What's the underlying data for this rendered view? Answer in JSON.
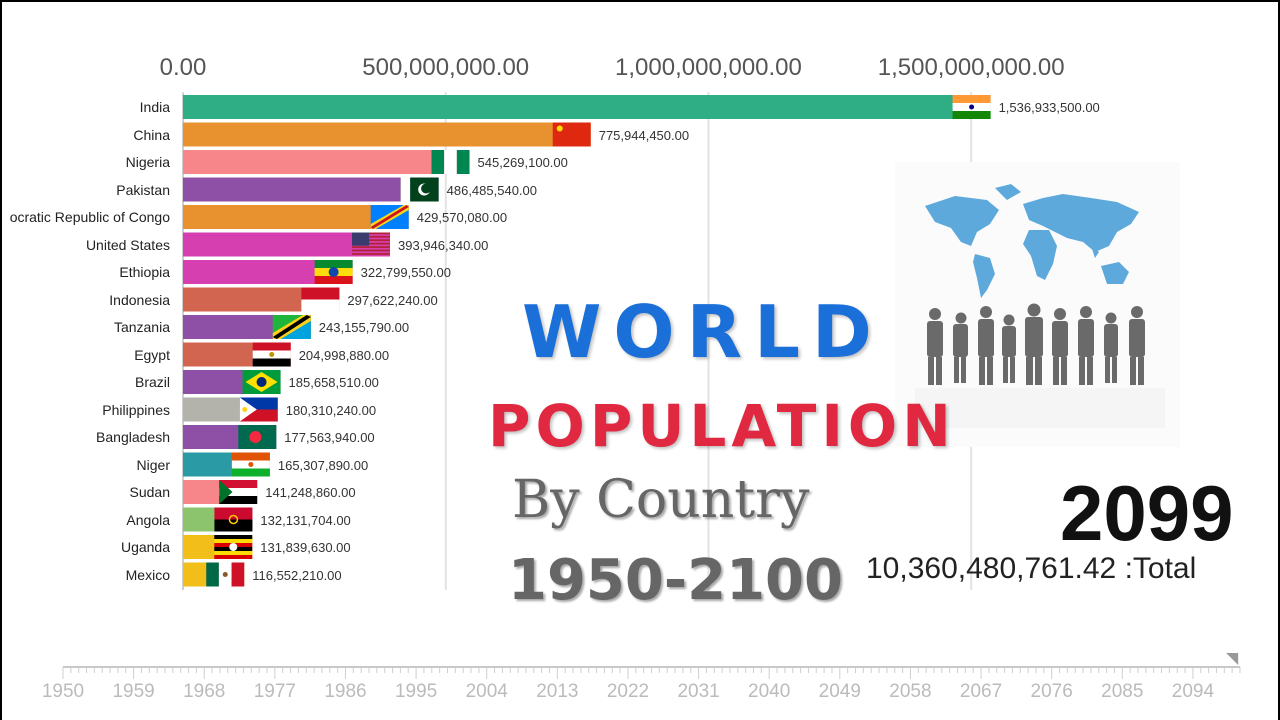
{
  "chart_data": {
    "type": "bar",
    "orientation": "horizontal",
    "xlim": [
      0,
      1650000000
    ],
    "x_ticks": [
      {
        "value": 0,
        "label": "0.00"
      },
      {
        "value": 500000000,
        "label": "500,000,000.00"
      },
      {
        "value": 1000000000,
        "label": "1,000,000,000.00"
      },
      {
        "value": 1500000000,
        "label": "1,500,000,000.00"
      }
    ],
    "categories": [
      "India",
      "China",
      "Nigeria",
      "Pakistan",
      "ocratic Republic of Congo",
      "United States",
      "Ethiopia",
      "Indonesia",
      "Tanzania",
      "Egypt",
      "Brazil",
      "Philippines",
      "Bangladesh",
      "Niger",
      "Sudan",
      "Angola",
      "Uganda",
      "Mexico"
    ],
    "values": [
      1536933500,
      775944450,
      545269100,
      486485540,
      429570080,
      393946340,
      322799550,
      297622240,
      243155790,
      204998880,
      185658510,
      180310240,
      177563940,
      165307890,
      141248860,
      132131704,
      131839630,
      116552210
    ],
    "value_labels": [
      "1,536,933,500.00",
      "775,944,450.00",
      "545,269,100.00",
      "486,485,540.00",
      "429,570,080.00",
      "393,946,340.00",
      "322,799,550.00",
      "297,622,240.00",
      "243,155,790.00",
      "204,998,880.00",
      "185,658,510.00",
      "180,310,240.00",
      "177,563,940.00",
      "165,307,890.00",
      "141,248,860.00",
      "132,131,704.00",
      "131,839,630.00",
      "116,552,210.00"
    ],
    "bar_colors": [
      "#2fae85",
      "#e8912f",
      "#f7868a",
      "#8e50a6",
      "#e8912f",
      "#d63fb0",
      "#d63fb0",
      "#d2654f",
      "#8e50a6",
      "#d2654f",
      "#8e50a6",
      "#b3b3ab",
      "#8e50a6",
      "#2a9aa5",
      "#f7868a",
      "#8cc46d",
      "#f2be19",
      "#f2be19"
    ],
    "flags": [
      "india",
      "china",
      "nigeria",
      "pakistan",
      "drc",
      "usa",
      "ethiopia",
      "indonesia",
      "tanzania",
      "egypt",
      "brazil",
      "philippines",
      "bangladesh",
      "niger",
      "sudan",
      "angola",
      "uganda",
      "mexico"
    ],
    "grid": true
  },
  "overlay": {
    "title_line1": "WORLD",
    "title_line2": "POPULATION",
    "title_line3": "By Country",
    "title_line4": "1950-2100",
    "current_year": "2099",
    "total": "10,360,480,761.42 :Total"
  },
  "timeline": {
    "labels": [
      "1950",
      "1959",
      "1968",
      "1977",
      "1986",
      "1995",
      "2004",
      "2013",
      "2022",
      "2031",
      "2040",
      "2049",
      "2058",
      "2067",
      "2076",
      "2085",
      "2094"
    ],
    "start": 1950,
    "end": 2100,
    "current": 2099
  },
  "art": {
    "map_color": "#5ea9dc",
    "silhouette_color": "#666666",
    "icon": "world-map-people-icon"
  }
}
